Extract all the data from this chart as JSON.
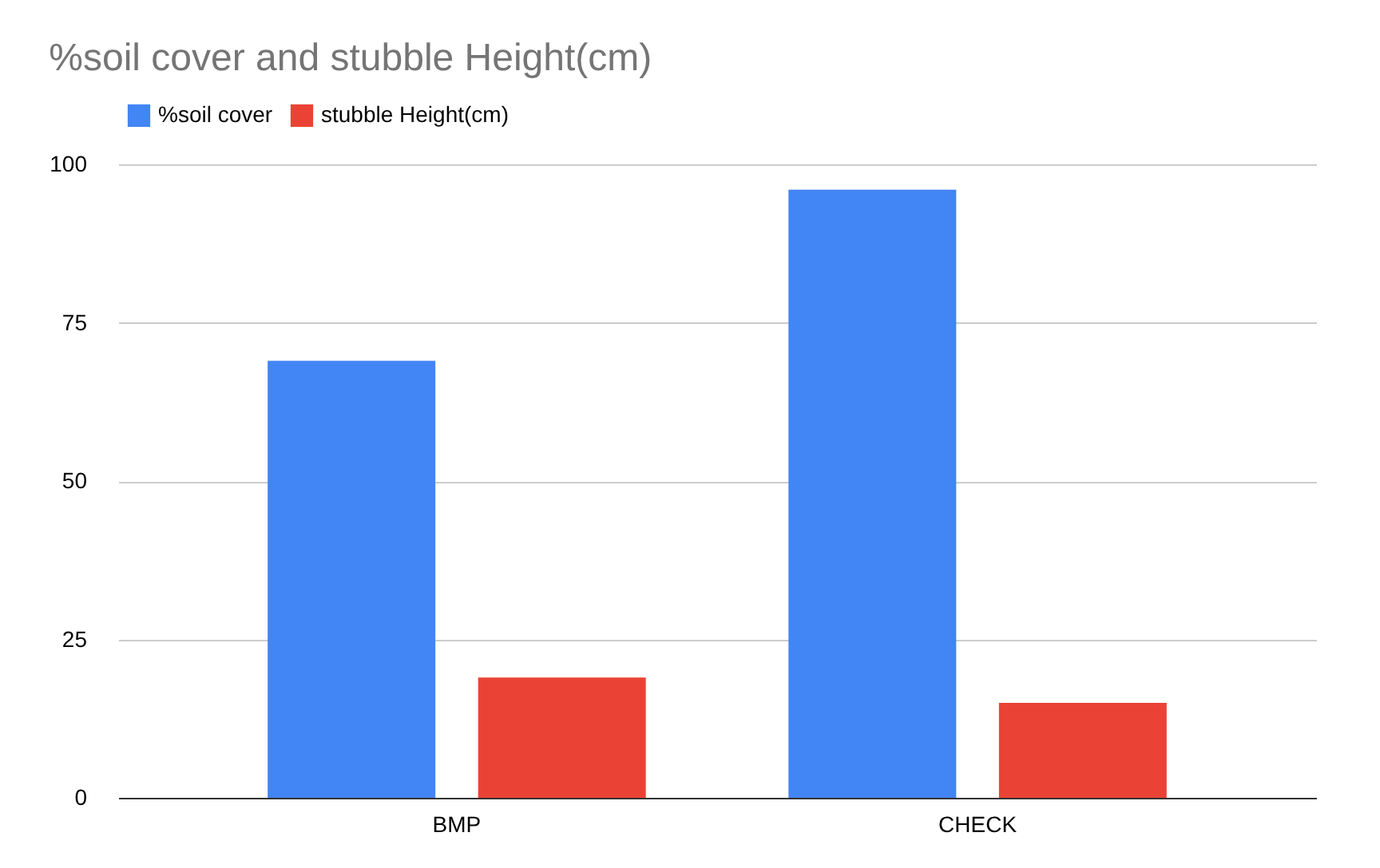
{
  "chart_data": {
    "type": "bar",
    "title": "%soil cover and stubble Height(cm)",
    "categories": [
      "BMP",
      "CHECK"
    ],
    "series": [
      {
        "name": "%soil cover",
        "color": "#4285f4",
        "values": [
          69,
          96
        ]
      },
      {
        "name": "stubble Height(cm)",
        "color": "#ea4335",
        "values": [
          19,
          15
        ]
      }
    ],
    "ylim": [
      0,
      100
    ],
    "yticks": [
      0,
      25,
      50,
      75,
      100
    ],
    "grid": "y",
    "legend": "top"
  }
}
